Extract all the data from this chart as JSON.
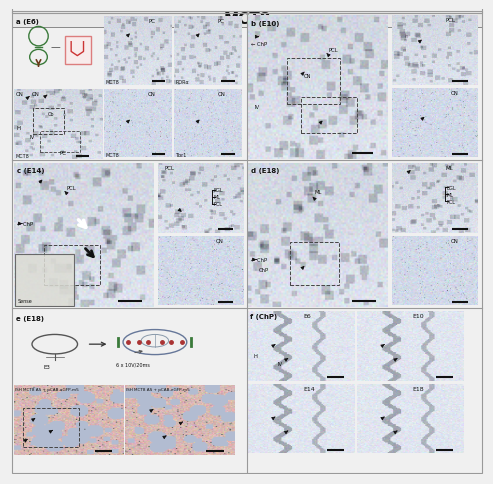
{
  "title": "MCT8",
  "title_fontsize": 11,
  "title_bg": "#e8e8e8",
  "outer_bg": "#f0f0f0",
  "tissue_bg": "#d8dde8",
  "tissue_mid": "#c0c8d8",
  "tissue_dark": "#a8b4c8",
  "white_bg": "#f0f0f0",
  "pink_bg": "#e0b8b0",
  "blue_tint": "#b8c4d4",
  "schematic_bg": "#f8f8f4",
  "border_color": "#888888",
  "text_color": "#111111",
  "arrow_color": "#111111",
  "scale_color": "#111111",
  "dash_color": "#444444",
  "green_schematic": "#3a7a3a",
  "red_schematic": "#cc3333",
  "brown_arrow": "#6b3a1a",
  "separator_color": "#999999"
}
